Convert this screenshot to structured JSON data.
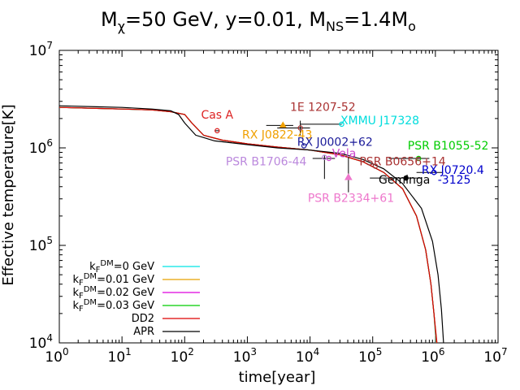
{
  "title": {
    "m_chi_label": "M",
    "m_chi_sub": "χ",
    "mass_value": "=50 GeV, y=0.01, M",
    "m_ns_sub": "NS",
    "ns_value": "=1.4M",
    "sun_sub": "o"
  },
  "axes": {
    "xlabel": "time[year]",
    "ylabel": "Effective temperature[K]"
  },
  "chart_data": {
    "type": "line",
    "title": "Mχ=50 GeV, y=0.01, MNS=1.4Mo",
    "xlabel": "time[year]",
    "ylabel": "Effective temperature[K]",
    "xscale": "log",
    "yscale": "log",
    "xlim": [
      1,
      10000000
    ],
    "ylim": [
      10000,
      10000000
    ],
    "x_ticks": [
      {
        "base": "10",
        "exp": "0",
        "value": 1
      },
      {
        "base": "10",
        "exp": "1",
        "value": 10
      },
      {
        "base": "10",
        "exp": "2",
        "value": 100
      },
      {
        "base": "10",
        "exp": "3",
        "value": 1000
      },
      {
        "base": "10",
        "exp": "4",
        "value": 10000
      },
      {
        "base": "10",
        "exp": "5",
        "value": 100000
      },
      {
        "base": "10",
        "exp": "6",
        "value": 1000000
      },
      {
        "base": "10",
        "exp": "7",
        "value": 10000000
      }
    ],
    "y_ticks": [
      {
        "base": "10",
        "exp": "4",
        "value": 10000
      },
      {
        "base": "10",
        "exp": "5",
        "value": 100000
      },
      {
        "base": "10",
        "exp": "6",
        "value": 1000000
      },
      {
        "base": "10",
        "exp": "7",
        "value": 10000000
      }
    ],
    "grid": false,
    "legend_position": "bottom-left",
    "series": [
      {
        "label": "k",
        "sub": "F",
        "sup": "DM",
        "suffix": "=0 GeV",
        "color": "#00e5e5",
        "points": [
          [
            1,
            2600000
          ],
          [
            10,
            2500000
          ],
          [
            30,
            2450000
          ],
          [
            60,
            2350000
          ],
          [
            100,
            2200000
          ],
          [
            130,
            1800000
          ],
          [
            200,
            1350000
          ],
          [
            400,
            1200000
          ],
          [
            1000,
            1100000
          ],
          [
            3000,
            1020000
          ],
          [
            10000,
            950000
          ],
          [
            30000,
            850000
          ],
          [
            70000,
            720000
          ],
          [
            150000,
            560000
          ],
          [
            300000,
            380000
          ],
          [
            500000,
            200000
          ],
          [
            700000,
            90000
          ],
          [
            850000,
            40000
          ],
          [
            950000,
            20000
          ],
          [
            1020000,
            10000
          ]
        ]
      },
      {
        "label": "k",
        "sub": "F",
        "sup": "DM",
        "suffix": "=0.01 GeV",
        "color": "#e8a000",
        "points": [
          [
            1,
            2600000
          ],
          [
            10,
            2500000
          ],
          [
            30,
            2450000
          ],
          [
            60,
            2350000
          ],
          [
            100,
            2200000
          ],
          [
            130,
            1800000
          ],
          [
            200,
            1350000
          ],
          [
            400,
            1200000
          ],
          [
            1000,
            1100000
          ],
          [
            3000,
            1020000
          ],
          [
            10000,
            950000
          ],
          [
            30000,
            850000
          ],
          [
            70000,
            720000
          ],
          [
            150000,
            560000
          ],
          [
            300000,
            380000
          ],
          [
            500000,
            200000
          ],
          [
            700000,
            90000
          ],
          [
            850000,
            40000
          ],
          [
            950000,
            20000
          ],
          [
            1030000,
            10000
          ]
        ]
      },
      {
        "label": "k",
        "sub": "F",
        "sup": "DM",
        "suffix": "=0.02 GeV",
        "color": "#dd00dd",
        "points": [
          [
            1,
            2600000
          ],
          [
            10,
            2500000
          ],
          [
            30,
            2450000
          ],
          [
            60,
            2350000
          ],
          [
            100,
            2200000
          ],
          [
            130,
            1800000
          ],
          [
            200,
            1350000
          ],
          [
            400,
            1200000
          ],
          [
            1000,
            1100000
          ],
          [
            3000,
            1020000
          ],
          [
            10000,
            950000
          ],
          [
            30000,
            850000
          ],
          [
            70000,
            720000
          ],
          [
            150000,
            560000
          ],
          [
            300000,
            380000
          ],
          [
            500000,
            200000
          ],
          [
            700000,
            90000
          ],
          [
            850000,
            40000
          ],
          [
            950000,
            20000
          ],
          [
            1040000,
            10000
          ]
        ]
      },
      {
        "label": "k",
        "sub": "F",
        "sup": "DM",
        "suffix": "=0.03 GeV",
        "color": "#00cc00",
        "points": [
          [
            1,
            2600000
          ],
          [
            10,
            2500000
          ],
          [
            30,
            2450000
          ],
          [
            60,
            2350000
          ],
          [
            100,
            2200000
          ],
          [
            130,
            1800000
          ],
          [
            200,
            1350000
          ],
          [
            400,
            1200000
          ],
          [
            1000,
            1100000
          ],
          [
            3000,
            1020000
          ],
          [
            10000,
            950000
          ],
          [
            30000,
            850000
          ],
          [
            70000,
            720000
          ],
          [
            150000,
            560000
          ],
          [
            300000,
            380000
          ],
          [
            500000,
            200000
          ],
          [
            700000,
            90000
          ],
          [
            850000,
            40000
          ],
          [
            950000,
            20000
          ],
          [
            1050000,
            10000
          ]
        ]
      },
      {
        "label": "DD2",
        "sub": "",
        "sup": "",
        "suffix": "",
        "color": "#dd0000",
        "points": [
          [
            1,
            2600000
          ],
          [
            10,
            2500000
          ],
          [
            30,
            2450000
          ],
          [
            60,
            2350000
          ],
          [
            100,
            2200000
          ],
          [
            130,
            1800000
          ],
          [
            200,
            1350000
          ],
          [
            400,
            1200000
          ],
          [
            1000,
            1100000
          ],
          [
            3000,
            1020000
          ],
          [
            10000,
            950000
          ],
          [
            30000,
            850000
          ],
          [
            70000,
            720000
          ],
          [
            150000,
            560000
          ],
          [
            300000,
            380000
          ],
          [
            500000,
            200000
          ],
          [
            700000,
            90000
          ],
          [
            850000,
            40000
          ],
          [
            950000,
            20000
          ],
          [
            1060000,
            10000
          ]
        ]
      },
      {
        "label": "APR",
        "sub": "",
        "sup": "",
        "suffix": "",
        "color": "#000000",
        "points": [
          [
            1,
            2700000
          ],
          [
            10,
            2600000
          ],
          [
            30,
            2500000
          ],
          [
            60,
            2400000
          ],
          [
            80,
            2200000
          ],
          [
            100,
            1800000
          ],
          [
            150,
            1350000
          ],
          [
            300,
            1180000
          ],
          [
            1000,
            1080000
          ],
          [
            3000,
            1000000
          ],
          [
            10000,
            950000
          ],
          [
            30000,
            880000
          ],
          [
            70000,
            760000
          ],
          [
            150000,
            610000
          ],
          [
            300000,
            430000
          ],
          [
            600000,
            240000
          ],
          [
            900000,
            110000
          ],
          [
            1100000,
            50000
          ],
          [
            1250000,
            22000
          ],
          [
            1350000,
            10000
          ]
        ]
      }
    ],
    "observations": [
      {
        "name": "Cas A",
        "color": "#dd2222",
        "x": 330,
        "y": 1500000,
        "marker": "circle",
        "xerr": [
          300,
          360
        ],
        "yerr": null
      },
      {
        "name": "RX J0822-43",
        "color": "#f0a000",
        "x": 3700,
        "y": 1700000,
        "marker": "triangle",
        "xerr": [
          2000,
          5400
        ],
        "yerr": null
      },
      {
        "name": "1E 1207-52",
        "color": "#aa3333",
        "x": 7000,
        "y": 1600000,
        "marker": "circle",
        "xerr": [
          3000,
          10000
        ],
        "yerr": [
          1350000,
          1900000
        ]
      },
      {
        "name": "XMMU J17328",
        "color": "#00dddd",
        "x": 32000,
        "y": 1750000,
        "marker": "circle",
        "xerr": [
          7000,
          32000
        ],
        "yerr": null
      },
      {
        "name": "RX J0002+62",
        "color": "#1a1a99",
        "x": 8000,
        "y": 1050000,
        "marker": "circle",
        "xerr": null,
        "yerr": null
      },
      {
        "name": "Vela",
        "color": "#cc44cc",
        "x": 20000,
        "y": 780000,
        "marker": "circle",
        "xerr": [
          11000,
          25000
        ],
        "yerr": null
      },
      {
        "name": "PSR B1706-44",
        "color": "#bb88dd",
        "x": 17000,
        "y": 800000,
        "marker": "circle",
        "xerr": null,
        "yerr": [
          480000,
          850000
        ]
      },
      {
        "name": "PSR B2334+61",
        "color": "#ee77cc",
        "x": 41000,
        "y": 500000,
        "marker": "triangle",
        "xerr": null,
        "yerr": [
          350000,
          800000
        ]
      },
      {
        "name": "PSR B0656+14",
        "color": "#aa3333",
        "x": 110000,
        "y": 650000,
        "marker": "circle",
        "xerr": null,
        "yerr": null
      },
      {
        "name": "Geminga",
        "color": "#000000",
        "x": 340000,
        "y": 490000,
        "marker": "circle",
        "xerr": [
          90000,
          600000
        ],
        "yerr": null
      },
      {
        "name": "PSR B1055-52",
        "color": "#00cc00",
        "x": 540000,
        "y": 780000,
        "marker": "circle",
        "xerr": [
          180000,
          800000
        ],
        "yerr": null
      },
      {
        "name": "RX J0720.4-3125",
        "color": "#0000cc",
        "x": 950000,
        "y": 560000,
        "marker": "circle",
        "xerr": [
          500000,
          1300000
        ],
        "yerr": null
      }
    ],
    "annotations": [
      {
        "text": "Cas A",
        "color": "#dd2222",
        "x": 330,
        "y": 2000000,
        "anchor": "middle"
      },
      {
        "text": "1E 1207-52",
        "color": "#aa3333",
        "x": 16000,
        "y": 2400000,
        "anchor": "middle"
      },
      {
        "text": "XMMU J17328",
        "color": "#00dddd",
        "x": 130000,
        "y": 1750000,
        "anchor": "middle"
      },
      {
        "text": "RX J0822-43",
        "color": "#f0a000",
        "x": 3000,
        "y": 1250000,
        "anchor": "middle"
      },
      {
        "text": "RX J0002+62",
        "color": "#1a1a99",
        "x": 25000,
        "y": 1050000,
        "anchor": "middle"
      },
      {
        "text": "PSR B1055-52",
        "color": "#00cc00",
        "x": 1600000,
        "y": 960000,
        "anchor": "middle"
      },
      {
        "text": "Vela",
        "color": "#cc44cc",
        "x": 35000,
        "y": 800000,
        "anchor": "middle"
      },
      {
        "text": "PSR B1706-44",
        "color": "#bb88dd",
        "x": 2000,
        "y": 660000,
        "anchor": "middle"
      },
      {
        "text": "PSR B0656+14",
        "color": "#aa3333",
        "x": 300000,
        "y": 660000,
        "anchor": "middle"
      },
      {
        "text": "RX J0720.4",
        "color": "#0000cc",
        "x": 1900000,
        "y": 540000,
        "anchor": "middle"
      },
      {
        "text": "Geminga",
        "color": "#000000",
        "x": 320000,
        "y": 430000,
        "anchor": "middle"
      },
      {
        "text": "-3125",
        "color": "#0000cc",
        "x": 2000000,
        "y": 430000,
        "anchor": "middle"
      },
      {
        "text": "PSR B2334+61",
        "color": "#ee77cc",
        "x": 45000,
        "y": 280000,
        "anchor": "middle"
      }
    ]
  }
}
